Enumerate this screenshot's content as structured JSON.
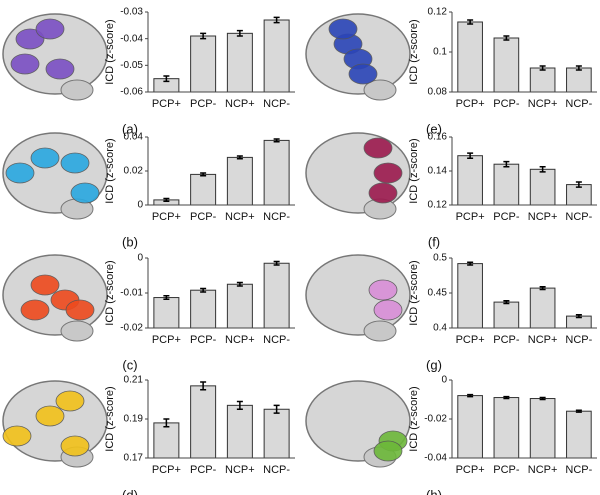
{
  "chart_data": [
    {
      "type": "bar",
      "label": "(a)",
      "ylabel": "ICD (z-score)",
      "categories": [
        "PCP+",
        "PCP-",
        "NCP+",
        "NCP-"
      ],
      "values": [
        -0.055,
        -0.039,
        -0.038,
        -0.033
      ],
      "errors": [
        0.001,
        0.001,
        0.001,
        0.001
      ],
      "ylim": [
        -0.06,
        -0.03
      ],
      "yticks": [
        -0.06,
        -0.05,
        -0.04,
        -0.03
      ],
      "color": "#d9d9d9",
      "region_color": "#7b4fc4"
    },
    {
      "type": "bar",
      "label": "(b)",
      "ylabel": "ICD (z-score)",
      "categories": [
        "PCP+",
        "PCP-",
        "NCP+",
        "NCP-"
      ],
      "values": [
        0.003,
        0.018,
        0.028,
        0.038
      ],
      "errors": [
        0.0008,
        0.0008,
        0.0008,
        0.0008
      ],
      "ylim": [
        0,
        0.04
      ],
      "yticks": [
        0,
        0.02,
        0.04
      ],
      "color": "#d9d9d9",
      "region_color": "#2aa8e0"
    },
    {
      "type": "bar",
      "label": "(c)",
      "ylabel": "ICD (z-score)",
      "categories": [
        "PCP+",
        "PCP-",
        "NCP+",
        "NCP-"
      ],
      "values": [
        -0.0113,
        -0.0092,
        -0.0075,
        -0.0015
      ],
      "errors": [
        0.0005,
        0.0005,
        0.0005,
        0.0005
      ],
      "ylim": [
        -0.02,
        0
      ],
      "yticks": [
        -0.02,
        -0.01,
        0
      ],
      "color": "#d9d9d9",
      "region_color": "#ee4a1e"
    },
    {
      "type": "bar",
      "label": "(d)",
      "ylabel": "ICD (z-score)",
      "categories": [
        "PCP+",
        "PCP-",
        "NCP+",
        "NCP-"
      ],
      "values": [
        0.188,
        0.207,
        0.197,
        0.195
      ],
      "errors": [
        0.002,
        0.002,
        0.002,
        0.002
      ],
      "ylim": [
        0.17,
        0.21
      ],
      "yticks": [
        0.17,
        0.19,
        0.21
      ],
      "color": "#d9d9d9",
      "region_color": "#f2c21a"
    },
    {
      "type": "bar",
      "label": "(e)",
      "ylabel": "ICD (z-score)",
      "categories": [
        "PCP+",
        "PCP-",
        "NCP+",
        "NCP-"
      ],
      "values": [
        0.115,
        0.107,
        0.092,
        0.092
      ],
      "errors": [
        0.001,
        0.001,
        0.001,
        0.001
      ],
      "ylim": [
        0.08,
        0.12
      ],
      "yticks": [
        0.08,
        0.1,
        0.12
      ],
      "color": "#d9d9d9",
      "region_color": "#2b45b8"
    },
    {
      "type": "bar",
      "label": "(f)",
      "ylabel": "ICD (z-score)",
      "categories": [
        "PCP+",
        "PCP-",
        "NCP+",
        "NCP-"
      ],
      "values": [
        0.149,
        0.144,
        0.141,
        0.132
      ],
      "errors": [
        0.0015,
        0.0015,
        0.0015,
        0.0015
      ],
      "ylim": [
        0.12,
        0.16
      ],
      "yticks": [
        0.12,
        0.14,
        0.16
      ],
      "color": "#d9d9d9",
      "region_color": "#9c1a4e"
    },
    {
      "type": "bar",
      "label": "(g)",
      "ylabel": "ICD (z-score)",
      "categories": [
        "PCP+",
        "PCP-",
        "NCP+",
        "NCP-"
      ],
      "values": [
        0.492,
        0.437,
        0.457,
        0.417
      ],
      "errors": [
        0.002,
        0.002,
        0.002,
        0.002
      ],
      "ylim": [
        0.4,
        0.5
      ],
      "yticks": [
        0.4,
        0.45,
        0.5
      ],
      "color": "#d9d9d9",
      "region_color": "#d98ed8"
    },
    {
      "type": "bar",
      "label": "(h)",
      "ylabel": "ICD (z-score)",
      "categories": [
        "PCP+",
        "PCP-",
        "NCP+",
        "NCP-"
      ],
      "values": [
        -0.008,
        -0.009,
        -0.0095,
        -0.016
      ],
      "errors": [
        0.0005,
        0.0005,
        0.0005,
        0.0005
      ],
      "ylim": [
        -0.04,
        0
      ],
      "yticks": [
        -0.04,
        -0.02,
        0
      ],
      "color": "#d9d9d9",
      "region_color": "#6db83a"
    }
  ]
}
